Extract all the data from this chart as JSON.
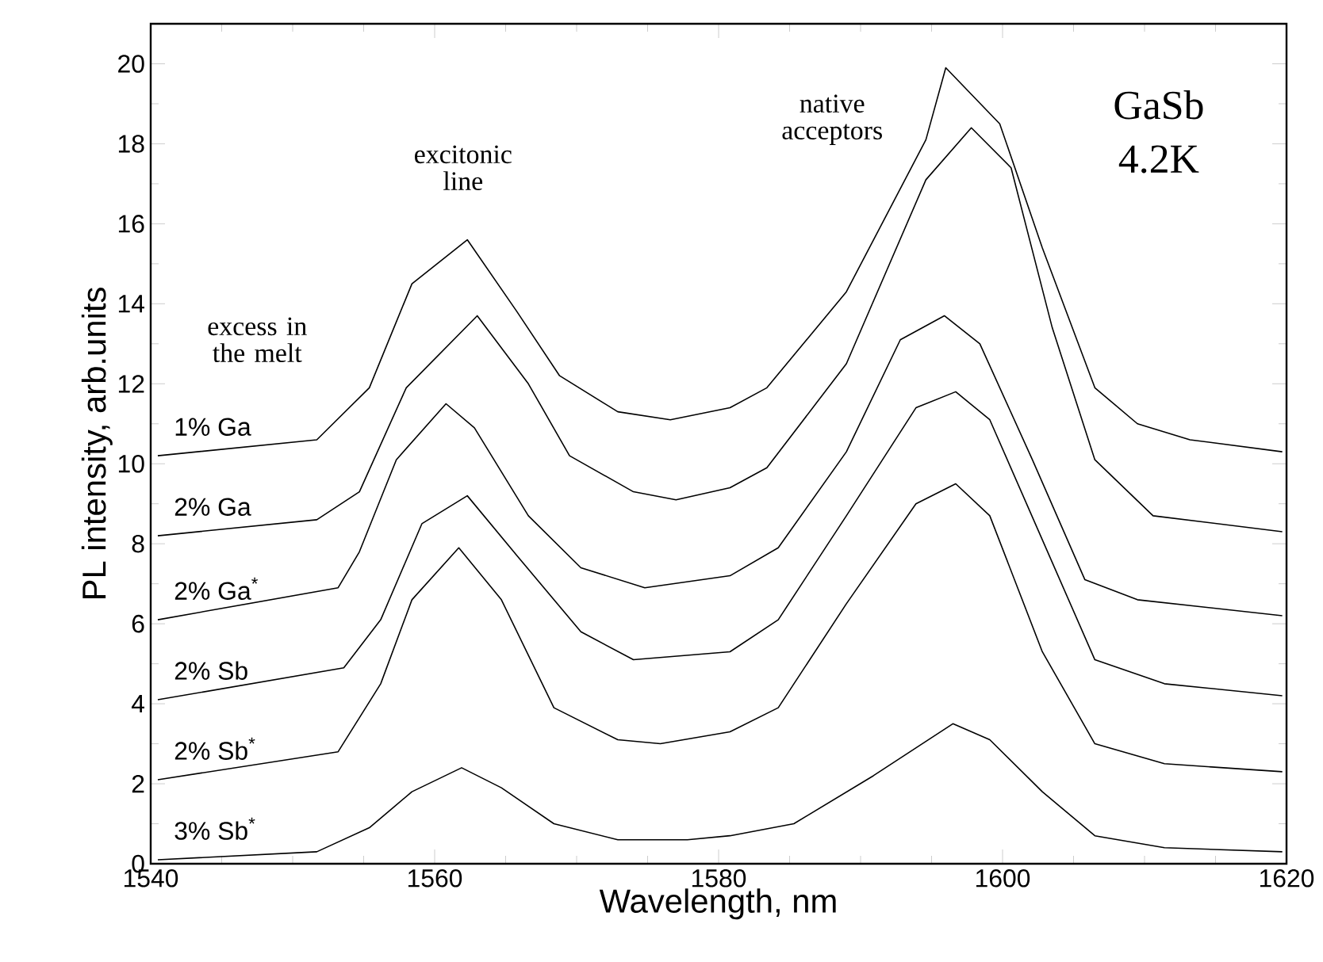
{
  "chart_data": {
    "type": "line",
    "xlabel": "Wavelength, nm",
    "ylabel": "PL intensity, arb.units",
    "xlim": [
      1540,
      1620
    ],
    "ylim": [
      0,
      21
    ],
    "xticks": [
      1540,
      1560,
      1580,
      1600,
      1620
    ],
    "yticks": [
      0,
      2,
      4,
      6,
      8,
      10,
      12,
      14,
      16,
      18,
      20
    ],
    "marker": "none",
    "line_style": "solid",
    "annotations": [
      "excitonic line",
      "native acceptors",
      "GaSb 4.2K",
      "excess in the melt"
    ],
    "series": [
      {
        "name": "1% Ga",
        "color": "#000000",
        "x": [
          1540.5,
          1551.7,
          1555.4,
          1558.4,
          1562.3,
          1565.8,
          1568.8,
          1572.9,
          1576.6,
          1580.8,
          1583.4,
          1589,
          1594.6,
          1596,
          1599.8,
          1602.8,
          1606.5,
          1609.5,
          1613.2,
          1619.7
        ],
        "values": [
          10.2,
          10.6,
          11.9,
          14.5,
          15.6,
          13.8,
          12.2,
          11.3,
          11.1,
          11.4,
          11.9,
          14.3,
          18.1,
          19.9,
          18.5,
          15.4,
          11.9,
          11.0,
          10.6,
          10.3
        ]
      },
      {
        "name": "2% Ga",
        "color": "#000000",
        "x": [
          1540.5,
          1551.7,
          1554.7,
          1558,
          1563,
          1566.6,
          1569.5,
          1574,
          1577,
          1580.8,
          1583.4,
          1589,
          1594.6,
          1597.8,
          1600.6,
          1603.5,
          1606.5,
          1610.6,
          1619.7
        ],
        "values": [
          8.2,
          8.6,
          9.3,
          11.9,
          13.7,
          12.0,
          10.2,
          9.3,
          9.1,
          9.4,
          9.9,
          12.5,
          17.1,
          18.4,
          17.4,
          13.4,
          10.1,
          8.7,
          8.3
        ]
      },
      {
        "name": "2% Ga$^{*}$",
        "color": "#000000",
        "x": [
          1540.5,
          1553.2,
          1554.7,
          1557.3,
          1560.8,
          1562.8,
          1566.6,
          1570.3,
          1574.8,
          1580.8,
          1584.2,
          1589,
          1592.8,
          1595.9,
          1598.4,
          1602.1,
          1605.8,
          1609.5,
          1619.7
        ],
        "values": [
          6.1,
          6.9,
          7.8,
          10.1,
          11.5,
          10.9,
          8.7,
          7.4,
          6.9,
          7.2,
          7.9,
          10.3,
          13.1,
          13.7,
          13.0,
          10.1,
          7.1,
          6.6,
          6.2
        ]
      },
      {
        "name": "2% Sb",
        "color": "#000000",
        "x": [
          1540.5,
          1553.6,
          1556.2,
          1559.1,
          1562.3,
          1565.8,
          1570.3,
          1574,
          1580.8,
          1584.2,
          1589,
          1593.9,
          1596.7,
          1599.1,
          1602.8,
          1606.5,
          1611.4,
          1619.7
        ],
        "values": [
          4.1,
          4.9,
          6.1,
          8.5,
          9.2,
          7.7,
          5.8,
          5.1,
          5.3,
          6.1,
          8.7,
          11.4,
          11.8,
          11.1,
          8.1,
          5.1,
          4.5,
          4.2
        ]
      },
      {
        "name": "2% Sb$^{*}$",
        "color": "#000000",
        "x": [
          1540.5,
          1553.2,
          1556.2,
          1558.4,
          1561.7,
          1564.7,
          1568.4,
          1572.9,
          1575.9,
          1580.8,
          1584.2,
          1589,
          1593.9,
          1596.7,
          1599.1,
          1602.8,
          1606.5,
          1611.4,
          1619.7
        ],
        "values": [
          2.1,
          2.8,
          4.5,
          6.6,
          7.9,
          6.6,
          3.9,
          3.1,
          3.0,
          3.3,
          3.9,
          6.5,
          9.0,
          9.5,
          8.7,
          5.3,
          3.0,
          2.5,
          2.3
        ]
      },
      {
        "name": "3% Sb$^{*}$",
        "color": "#000000",
        "x": [
          1540.5,
          1551.7,
          1555.4,
          1558.4,
          1561.9,
          1564.7,
          1568.4,
          1572.9,
          1577.8,
          1580.8,
          1585.3,
          1590.9,
          1596.5,
          1599.1,
          1602.8,
          1606.5,
          1611.4,
          1619.7
        ],
        "values": [
          0.1,
          0.3,
          0.9,
          1.8,
          2.4,
          1.9,
          1.0,
          0.6,
          0.6,
          0.7,
          1.0,
          2.2,
          3.5,
          3.1,
          1.8,
          0.7,
          0.4,
          0.3
        ]
      }
    ]
  }
}
